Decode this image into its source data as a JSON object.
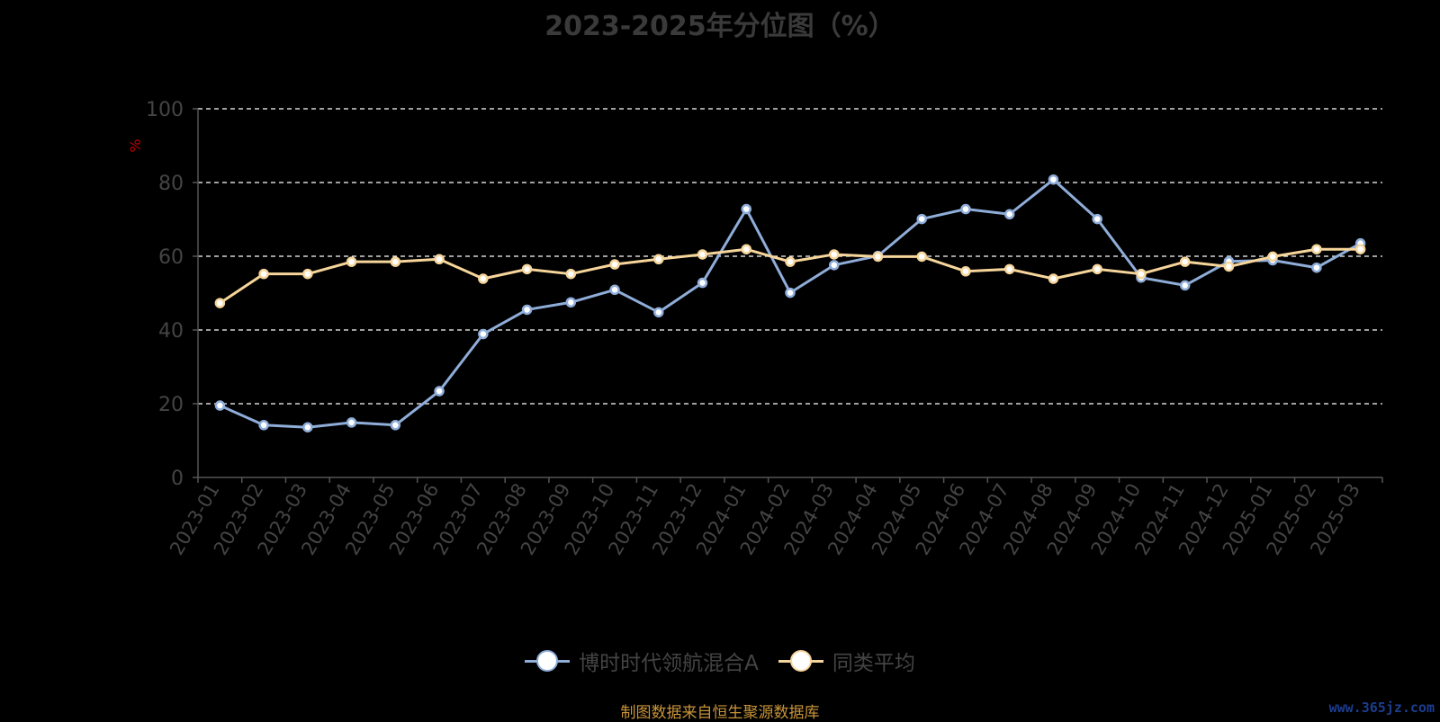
{
  "chart_data": {
    "type": "line",
    "title": "2023-2025年分位图（%）",
    "ylabel": "%",
    "xlabel": "",
    "ylim": [
      0,
      100
    ],
    "yticks": [
      0,
      20,
      40,
      60,
      80,
      100
    ],
    "grid": true,
    "legend_position": "bottom-center",
    "categories": [
      "2023-01",
      "2023-02",
      "2023-03",
      "2023-04",
      "2023-05",
      "2023-06",
      "2023-07",
      "2023-08",
      "2023-09",
      "2023-10",
      "2023-11",
      "2023-12",
      "2024-01",
      "2024-02",
      "2024-03",
      "2024-04",
      "2024-05",
      "2024-06",
      "2024-07",
      "2024-08",
      "2024-09",
      "2024-10",
      "2024-11",
      "2024-12",
      "2025-01",
      "2025-02",
      "2025-03"
    ],
    "series": [
      {
        "name": "博时时代领航混合A",
        "color": "#8fadd9",
        "values": [
          19.5,
          14.2,
          13.6,
          14.9,
          14.2,
          23.4,
          38.9,
          45.5,
          47.5,
          50.9,
          44.8,
          52.8,
          72.8,
          50.1,
          57.6,
          60.1,
          70.1,
          72.8,
          71.4,
          80.8,
          70.1,
          54.2,
          52.1,
          58.6,
          58.9,
          56.9,
          63.5
        ]
      },
      {
        "name": "同类平均",
        "color": "#f6d59b",
        "values": [
          47.3,
          55.2,
          55.2,
          58.5,
          58.5,
          59.2,
          53.9,
          56.5,
          55.2,
          57.8,
          59.2,
          60.5,
          61.9,
          58.5,
          60.5,
          59.9,
          59.9,
          55.9,
          56.5,
          53.9,
          56.5,
          55.2,
          58.5,
          57.2,
          59.9,
          61.9,
          61.9
        ]
      }
    ]
  },
  "source_note": "制图数据来自恒生聚源数据库",
  "watermark": "www.365jz.com"
}
